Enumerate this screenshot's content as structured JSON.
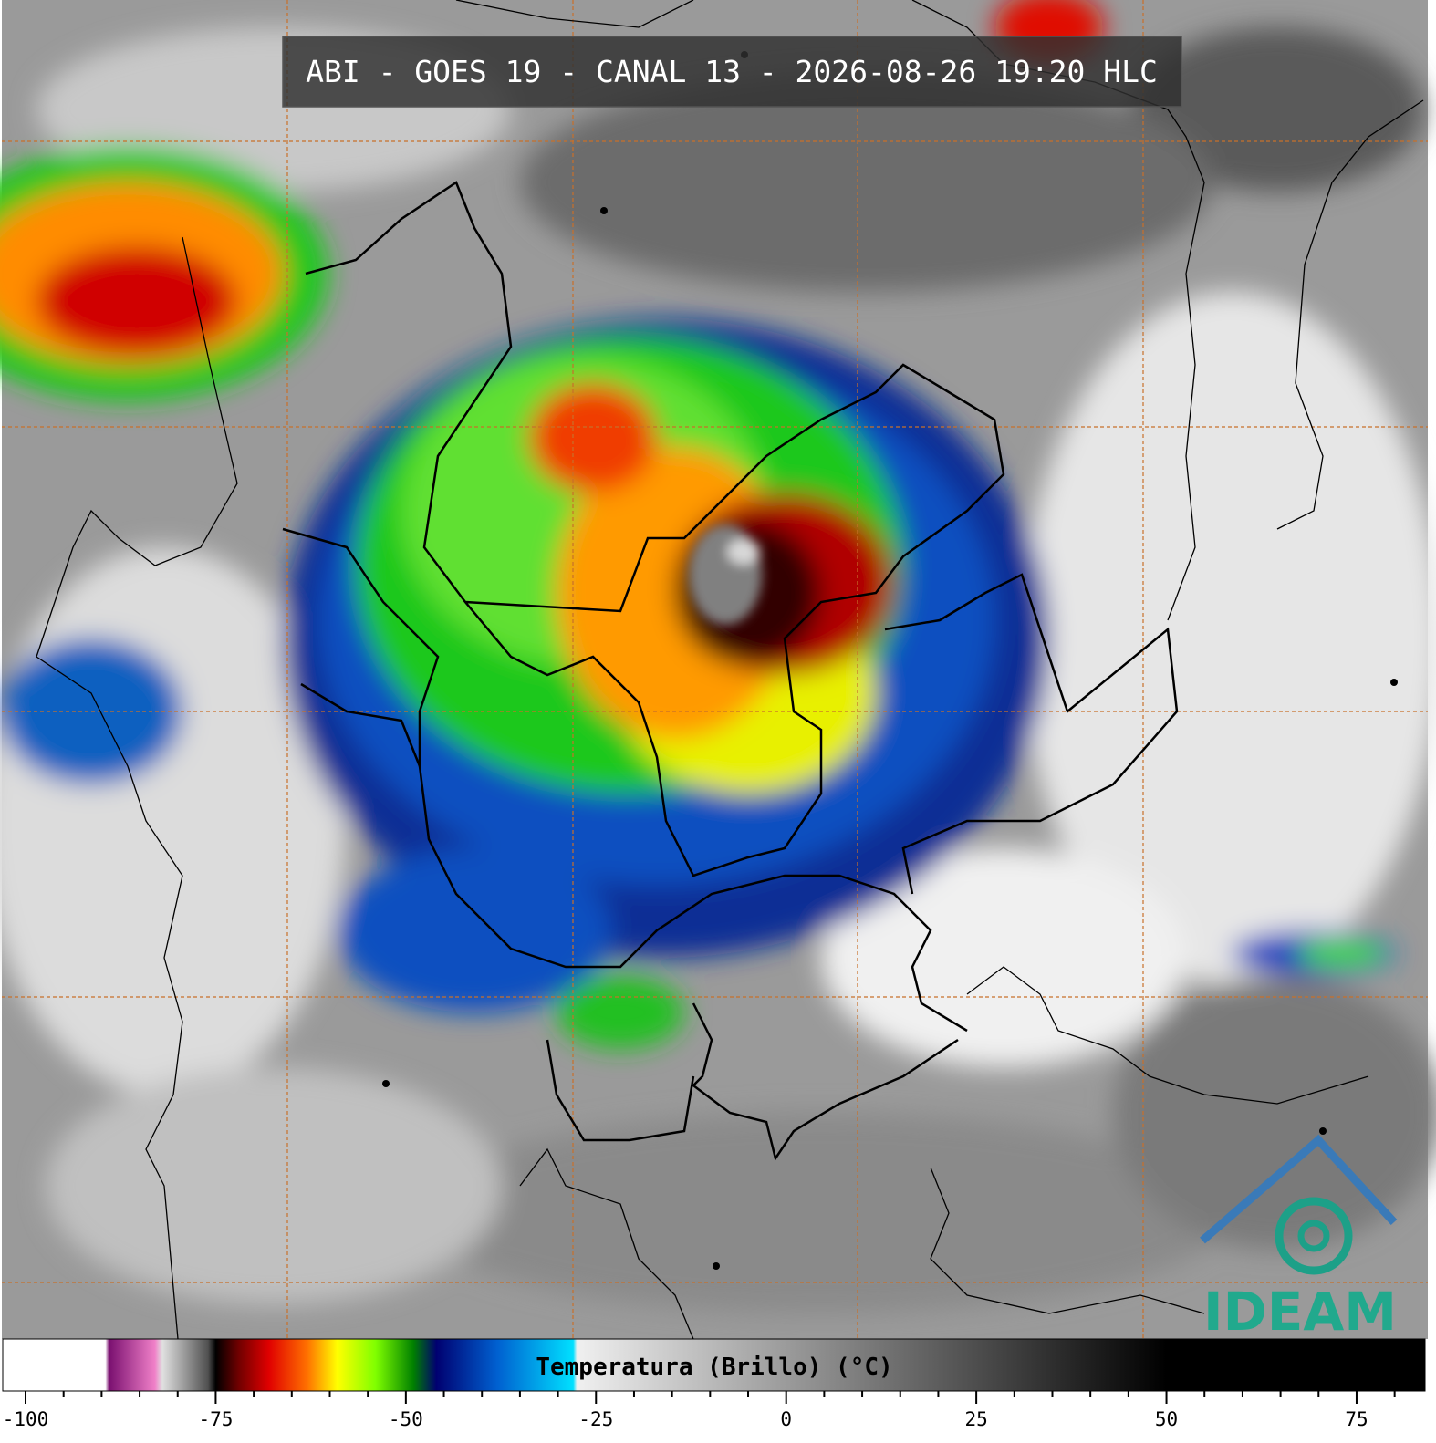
{
  "title": "ABI - GOES 19 - CANAL 13 - 2026-08-26 19:20 HLC",
  "logo": "IDEAM",
  "colorbar": {
    "label": "Temperatura (Brillo) (°C)",
    "xlim": [
      -103,
      84
    ],
    "xticks": [
      -100,
      -75,
      -50,
      -25,
      0,
      25,
      50,
      75
    ],
    "minor_ticks": [
      -95,
      -90,
      -85,
      -80,
      -70,
      -65,
      -60,
      -55,
      -45,
      -40,
      -35,
      -30,
      -20,
      -15,
      -10,
      -5,
      5,
      10,
      15,
      20,
      30,
      35,
      40,
      45,
      55,
      60,
      65,
      70,
      80
    ],
    "colorscale": [
      [
        -103,
        "#ffffff"
      ],
      [
        -89.5,
        "#ffffff"
      ],
      [
        -89,
        "#7a1070"
      ],
      [
        -83,
        "#f080c8"
      ],
      [
        -82,
        "#e0e0e0"
      ],
      [
        -76,
        "#505050"
      ],
      [
        -75,
        "#000000"
      ],
      [
        -72,
        "#700000"
      ],
      [
        -68,
        "#e00000"
      ],
      [
        -63,
        "#ff7000"
      ],
      [
        -59,
        "#ffff00"
      ],
      [
        -54,
        "#80ff00"
      ],
      [
        -49,
        "#008000"
      ],
      [
        -46,
        "#000070"
      ],
      [
        -38,
        "#0060d0"
      ],
      [
        -28,
        "#00e0ff"
      ],
      [
        -27.5,
        "#f0f0f0"
      ],
      [
        50,
        "#000000"
      ],
      [
        84,
        "#000000"
      ]
    ]
  }
}
